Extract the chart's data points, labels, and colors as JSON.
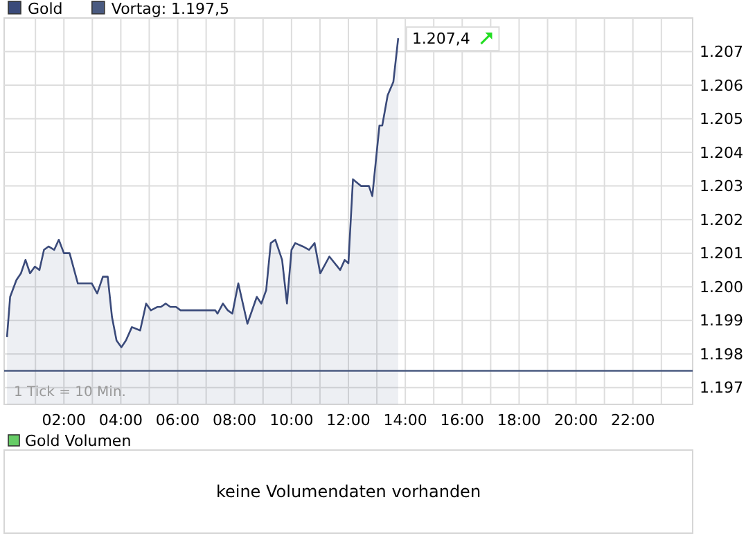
{
  "chart_data": [
    {
      "type": "area",
      "legend": "top left",
      "grid": true,
      "marker": "none",
      "line_style": "solid",
      "xlim": [
        -0.1,
        24.1
      ],
      "ylim": [
        1196.5,
        1208
      ],
      "xticks": [
        {
          "value": 1,
          "label": null
        },
        {
          "value": 2,
          "label": "02:00"
        },
        {
          "value": 3,
          "label": null
        },
        {
          "value": 4,
          "label": "04:00"
        },
        {
          "value": 5,
          "label": null
        },
        {
          "value": 6,
          "label": "06:00"
        },
        {
          "value": 7,
          "label": null
        },
        {
          "value": 8,
          "label": "08:00"
        },
        {
          "value": 9,
          "label": null
        },
        {
          "value": 10,
          "label": "10:00"
        },
        {
          "value": 11,
          "label": null
        },
        {
          "value": 12,
          "label": "12:00"
        },
        {
          "value": 13,
          "label": null
        },
        {
          "value": 14,
          "label": "14:00"
        },
        {
          "value": 15,
          "label": null
        },
        {
          "value": 16,
          "label": "16:00"
        },
        {
          "value": 17,
          "label": null
        },
        {
          "value": 18,
          "label": "18:00"
        },
        {
          "value": 19,
          "label": null
        },
        {
          "value": 20,
          "label": "20:00"
        },
        {
          "value": 21,
          "label": null
        },
        {
          "value": 22,
          "label": "22:00"
        },
        {
          "value": 23,
          "label": null
        }
      ],
      "yticks": [
        {
          "value": 1197,
          "label": "1.197"
        },
        {
          "value": 1198,
          "label": "1.198"
        },
        {
          "value": 1199,
          "label": "1.199"
        },
        {
          "value": 1200,
          "label": "1.200"
        },
        {
          "value": 1201,
          "label": "1.201"
        },
        {
          "value": 1202,
          "label": "1.202"
        },
        {
          "value": 1203,
          "label": "1.203"
        },
        {
          "value": 1204,
          "label": "1.204"
        },
        {
          "value": 1205,
          "label": "1.205"
        },
        {
          "value": 1206,
          "label": "1.206"
        },
        {
          "value": 1207,
          "label": "1.207"
        }
      ],
      "ref_lines": [
        {
          "axis": "y",
          "value": 1197.5,
          "label": "Vortag: 1.197,5",
          "color": "#4a5a80"
        }
      ],
      "annotations": [
        {
          "text": "1.207,4",
          "x": 13.75,
          "y": 1207.4
        },
        "1 Tick = 10 Min."
      ],
      "series": [
        {
          "name": "Gold",
          "color": "#3a4a7a",
          "x": [
            0.0,
            0.11,
            0.33,
            0.49,
            0.65,
            0.81,
            0.98,
            1.14,
            1.3,
            1.46,
            1.66,
            1.82,
            2.0,
            2.2,
            2.49,
            2.65,
            2.98,
            3.17,
            3.37,
            3.54,
            3.69,
            3.85,
            4.02,
            4.18,
            4.39,
            4.68,
            4.89,
            5.06,
            5.28,
            5.41,
            5.58,
            5.74,
            5.94,
            6.1,
            7.32,
            7.4,
            7.59,
            7.76,
            7.92,
            8.13,
            8.45,
            8.78,
            8.94,
            9.11,
            9.27,
            9.43,
            9.67,
            9.84,
            10.0,
            10.13,
            10.4,
            10.62,
            10.81,
            11.01,
            11.33,
            11.71,
            11.87,
            12.0,
            12.16,
            12.44,
            12.72,
            12.84,
            13.09,
            13.19,
            13.38,
            13.58,
            13.75
          ],
          "values": [
            1198.5,
            1199.7,
            1200.2,
            1200.4,
            1200.8,
            1200.4,
            1200.6,
            1200.5,
            1201.1,
            1201.2,
            1201.1,
            1201.4,
            1201.0,
            1201.0,
            1200.1,
            1200.1,
            1200.1,
            1199.8,
            1200.3,
            1200.3,
            1199.1,
            1198.4,
            1198.2,
            1198.4,
            1198.8,
            1198.7,
            1199.5,
            1199.3,
            1199.4,
            1199.4,
            1199.5,
            1199.4,
            1199.4,
            1199.3,
            1199.3,
            1199.2,
            1199.5,
            1199.3,
            1199.2,
            1200.1,
            1198.9,
            1199.7,
            1199.5,
            1199.9,
            1201.3,
            1201.4,
            1200.8,
            1199.5,
            1201.1,
            1201.3,
            1201.2,
            1201.1,
            1201.3,
            1200.4,
            1200.9,
            1200.5,
            1200.8,
            1200.7,
            1203.2,
            1203.0,
            1203.0,
            1202.7,
            1204.8,
            1204.8,
            1205.7,
            1206.1,
            1207.4
          ]
        }
      ]
    },
    {
      "type": "other",
      "title": "Gold Volumen",
      "annotations": [
        "keine Volumendaten vorhanden"
      ]
    }
  ]
}
